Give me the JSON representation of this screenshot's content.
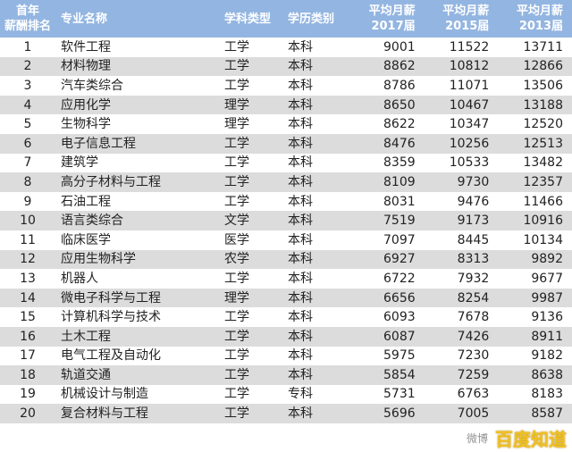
{
  "header": {
    "rank": [
      "首年",
      "薪酬排名"
    ],
    "name": "专业名称",
    "type": "学科类型",
    "degree": "学历类别",
    "y2017": [
      "平均月薪",
      "2017届"
    ],
    "y2015": [
      "平均月薪",
      "2015届"
    ],
    "y2013": [
      "平均月薪",
      "2013届"
    ]
  },
  "rows": [
    [
      "1",
      "软件工程",
      "工学",
      "本科",
      "9001",
      "11522",
      "13711"
    ],
    [
      "2",
      "材料物理",
      "工学",
      "本科",
      "8862",
      "10812",
      "12866"
    ],
    [
      "3",
      "汽车类综合",
      "工学",
      "本科",
      "8786",
      "11071",
      "13506"
    ],
    [
      "4",
      "应用化学",
      "理学",
      "本科",
      "8650",
      "10467",
      "13188"
    ],
    [
      "5",
      "生物科学",
      "理学",
      "本科",
      "8622",
      "10347",
      "12520"
    ],
    [
      "6",
      "电子信息工程",
      "工学",
      "本科",
      "8476",
      "10256",
      "12513"
    ],
    [
      "7",
      "建筑学",
      "工学",
      "本科",
      "8359",
      "10533",
      "13482"
    ],
    [
      "8",
      "高分子材料与工程",
      "工学",
      "本科",
      "8109",
      "9730",
      "12357"
    ],
    [
      "9",
      "石油工程",
      "工学",
      "本科",
      "8031",
      "9476",
      "11466"
    ],
    [
      "10",
      "语言类综合",
      "文学",
      "本科",
      "7519",
      "9173",
      "10916"
    ],
    [
      "11",
      "临床医学",
      "医学",
      "本科",
      "7097",
      "8445",
      "10134"
    ],
    [
      "12",
      "应用生物科学",
      "农学",
      "本科",
      "6927",
      "8313",
      "9892"
    ],
    [
      "13",
      "机器人",
      "工学",
      "本科",
      "6722",
      "7932",
      "9677"
    ],
    [
      "14",
      "微电子科学与工程",
      "理学",
      "本科",
      "6656",
      "8254",
      "9987"
    ],
    [
      "15",
      "计算机科学与技术",
      "工学",
      "本科",
      "6093",
      "7678",
      "9136"
    ],
    [
      "16",
      "土木工程",
      "工学",
      "本科",
      "6087",
      "7426",
      "8911"
    ],
    [
      "17",
      "电气工程及自动化",
      "工学",
      "本科",
      "5975",
      "7230",
      "9182"
    ],
    [
      "18",
      "轨道交通",
      "工学",
      "本科",
      "5854",
      "7259",
      "8638"
    ],
    [
      "19",
      "机械设计与制造",
      "工学",
      "专科",
      "5731",
      "6763",
      "8183"
    ],
    [
      "20",
      "复合材料与工程",
      "工学",
      "本科",
      "5696",
      "7005",
      "8587"
    ]
  ],
  "watermark": {
    "weibo": "微博",
    "baidu": "百度知道"
  },
  "colors": {
    "header_bg": "#93b5e1",
    "stripe": "#dcdcdc",
    "baidu": "#f0c020"
  }
}
